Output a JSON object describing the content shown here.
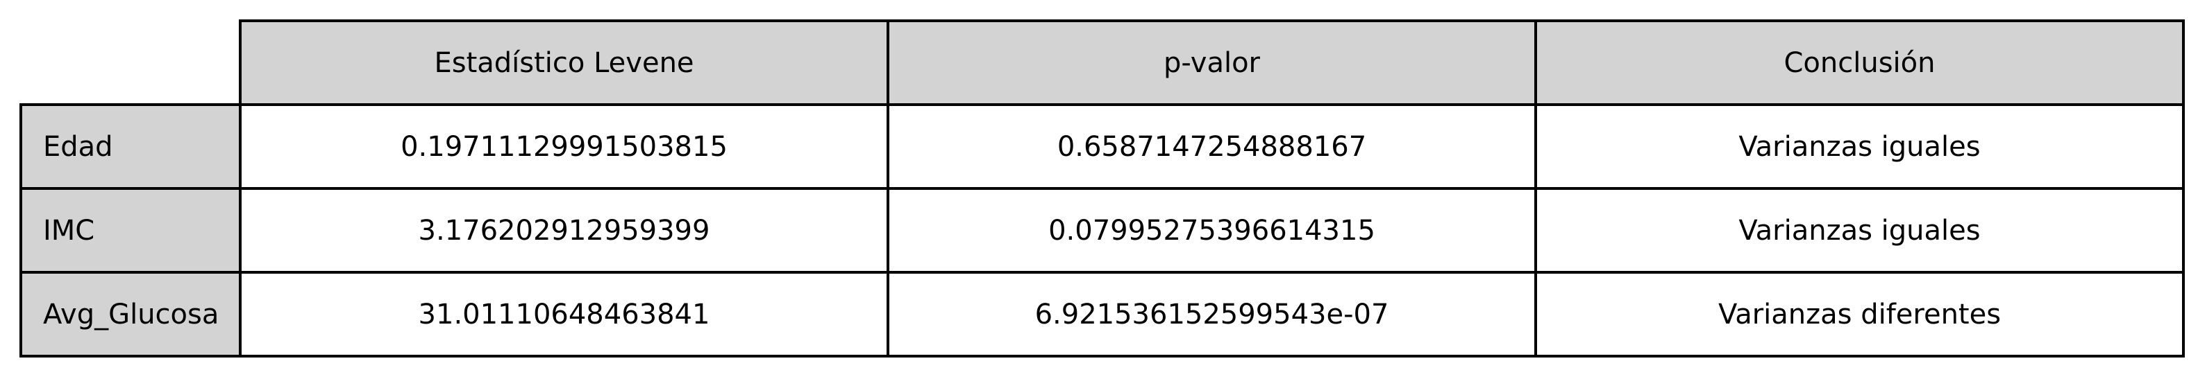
{
  "chart_data": {
    "type": "table",
    "columns": [
      "Estadístico Levene",
      "p-valor",
      "Conclusión"
    ],
    "rows": [
      {
        "label": "Edad",
        "cells": [
          "0.19711129991503815",
          "0.6587147254888167",
          "Varianzas iguales"
        ]
      },
      {
        "label": "IMC",
        "cells": [
          "3.176202912959399",
          "0.07995275396614315",
          "Varianzas iguales"
        ]
      },
      {
        "label": "Avg_Glucosa",
        "cells": [
          "31.01110648463841",
          "6.921536152599543e-07",
          "Varianzas diferentes"
        ]
      }
    ]
  },
  "colors": {
    "header_background": "#d3d3d3",
    "cell_background": "#ffffff",
    "border": "#000000",
    "text": "#000000"
  }
}
